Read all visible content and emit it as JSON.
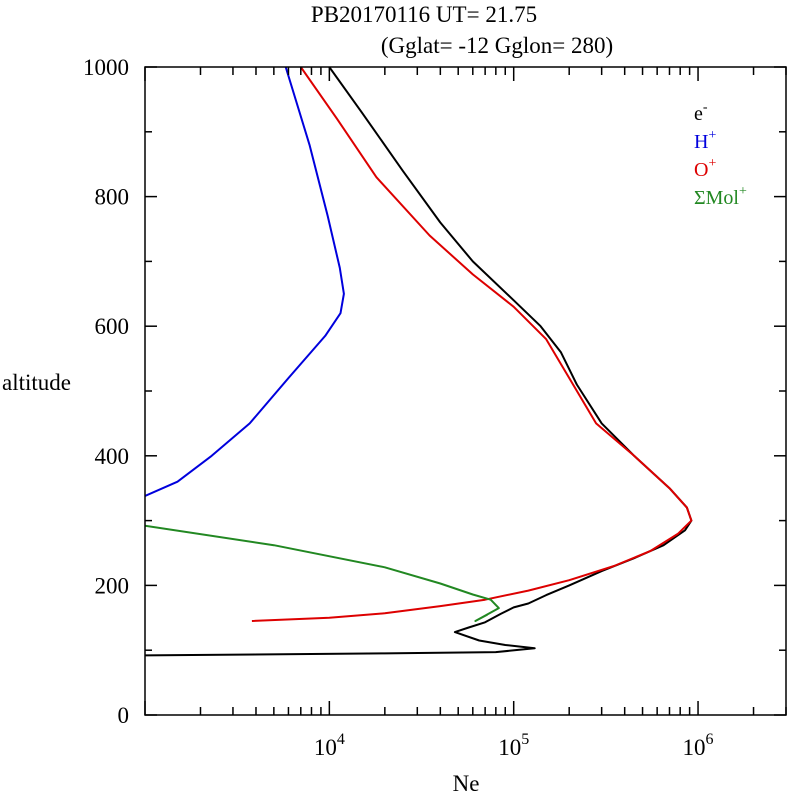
{
  "chart_data": {
    "type": "line",
    "title": "PB20170116   UT=  21.75",
    "subtitle": "(Gglat= -12   Gglon=  280)",
    "xlabel": "Ne",
    "ylabel": "altitude",
    "x_scale": "log",
    "xlim": [
      1000,
      3000000
    ],
    "ylim": [
      0,
      1000
    ],
    "x_ticks": [
      {
        "value": 10000,
        "base": "10",
        "exp": "4"
      },
      {
        "value": 100000,
        "base": "10",
        "exp": "5"
      },
      {
        "value": 1000000,
        "base": "10",
        "exp": "6"
      }
    ],
    "y_ticks": [
      {
        "value": 0,
        "label": "0"
      },
      {
        "value": 200,
        "label": "200"
      },
      {
        "value": 400,
        "label": "400"
      },
      {
        "value": 600,
        "label": "600"
      },
      {
        "value": 800,
        "label": "800"
      },
      {
        "value": 1000,
        "label": "1000"
      }
    ],
    "legend_position": "top-right",
    "series": [
      {
        "name": "e",
        "sup": "-",
        "color": "#000000",
        "points": [
          [
            1000,
            92
          ],
          [
            20000,
            95
          ],
          [
            80000,
            97
          ],
          [
            130000,
            103
          ],
          [
            90000,
            108
          ],
          [
            65000,
            115
          ],
          [
            48000,
            128
          ],
          [
            57000,
            135
          ],
          [
            70000,
            143
          ],
          [
            85000,
            156
          ],
          [
            100000,
            166
          ],
          [
            120000,
            172
          ],
          [
            150000,
            185
          ],
          [
            200000,
            200
          ],
          [
            300000,
            222
          ],
          [
            450000,
            242
          ],
          [
            650000,
            262
          ],
          [
            850000,
            285
          ],
          [
            920000,
            300
          ],
          [
            870000,
            320
          ],
          [
            700000,
            350
          ],
          [
            450000,
            400
          ],
          [
            300000,
            450
          ],
          [
            220000,
            510
          ],
          [
            180000,
            560
          ],
          [
            140000,
            600
          ],
          [
            100000,
            640
          ],
          [
            60000,
            700
          ],
          [
            40000,
            760
          ],
          [
            25000,
            840
          ],
          [
            15000,
            930
          ],
          [
            10000,
            1000
          ]
        ]
      },
      {
        "name": "H",
        "sup": "+",
        "color": "#0000dd",
        "points": [
          [
            1000,
            338
          ],
          [
            1500,
            360
          ],
          [
            2300,
            400
          ],
          [
            3700,
            450
          ],
          [
            6000,
            520
          ],
          [
            9500,
            585
          ],
          [
            11500,
            620
          ],
          [
            12000,
            650
          ],
          [
            11400,
            690
          ],
          [
            9800,
            770
          ],
          [
            7800,
            880
          ],
          [
            5800,
            1000
          ]
        ]
      },
      {
        "name": "O",
        "sup": "+",
        "color": "#dd0000",
        "points": [
          [
            3800,
            145
          ],
          [
            10000,
            150
          ],
          [
            20000,
            157
          ],
          [
            40000,
            168
          ],
          [
            70000,
            178
          ],
          [
            120000,
            192
          ],
          [
            200000,
            208
          ],
          [
            350000,
            230
          ],
          [
            550000,
            253
          ],
          [
            780000,
            280
          ],
          [
            920000,
            300
          ],
          [
            870000,
            320
          ],
          [
            700000,
            350
          ],
          [
            450000,
            400
          ],
          [
            280000,
            450
          ],
          [
            200000,
            520
          ],
          [
            150000,
            580
          ],
          [
            100000,
            630
          ],
          [
            60000,
            680
          ],
          [
            35000,
            740
          ],
          [
            18000,
            830
          ],
          [
            11000,
            920
          ],
          [
            7000,
            1000
          ]
        ]
      },
      {
        "name": "ΣMol",
        "sup": "+",
        "color": "#228822",
        "points": [
          [
            1000,
            292
          ],
          [
            5000,
            262
          ],
          [
            20000,
            228
          ],
          [
            40000,
            203
          ],
          [
            60000,
            186
          ],
          [
            75000,
            178
          ],
          [
            83000,
            165
          ],
          [
            62000,
            145
          ],
          [
            72000,
            155
          ]
        ]
      }
    ]
  }
}
